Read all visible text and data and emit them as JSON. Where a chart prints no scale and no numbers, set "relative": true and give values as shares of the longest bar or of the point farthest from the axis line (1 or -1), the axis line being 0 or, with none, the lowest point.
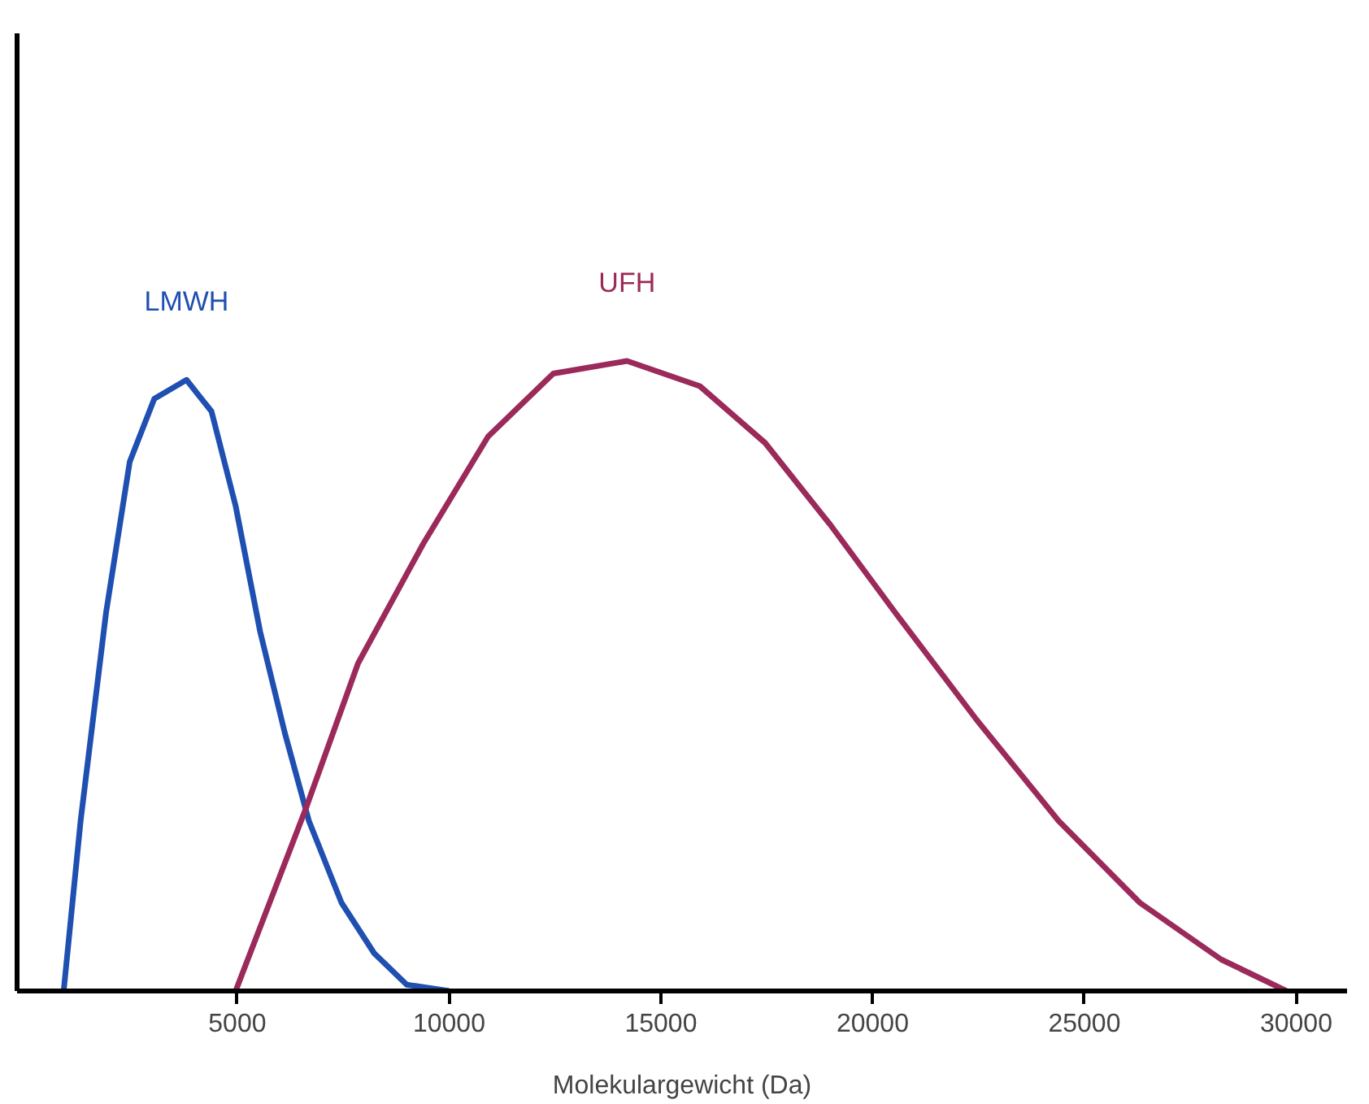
{
  "chart_data": {
    "type": "line",
    "relative": true,
    "xlabel": "Molekulargewicht (Da)",
    "xlim": [
      -200,
      31200
    ],
    "xticks": [
      5000,
      10000,
      15000,
      20000,
      25000,
      30000
    ],
    "grid": false,
    "legend": false,
    "marker": "none",
    "line_style": "solid",
    "series": [
      {
        "name": "LMWH",
        "color": "#1f4fb0",
        "x": [
          900,
          1300,
          1900,
          2460,
          3040,
          3800,
          4390,
          4960,
          5540,
          6120,
          6690,
          7460,
          8230,
          9000,
          10000
        ],
        "values": [
          0,
          0.27,
          0.6,
          0.84,
          0.94,
          0.97,
          0.92,
          0.77,
          0.57,
          0.41,
          0.27,
          0.14,
          0.06,
          0.01,
          0
        ]
      },
      {
        "name": "UFH",
        "color": "#9b2a5a",
        "x": [
          4960,
          6620,
          7850,
          9390,
          10920,
          12460,
          14200,
          15920,
          17460,
          19000,
          20540,
          22460,
          24390,
          26310,
          28230,
          29770
        ],
        "values": [
          0,
          0.29,
          0.52,
          0.71,
          0.88,
          0.98,
          1.0,
          0.96,
          0.87,
          0.74,
          0.6,
          0.43,
          0.27,
          0.14,
          0.05,
          0
        ]
      }
    ]
  }
}
